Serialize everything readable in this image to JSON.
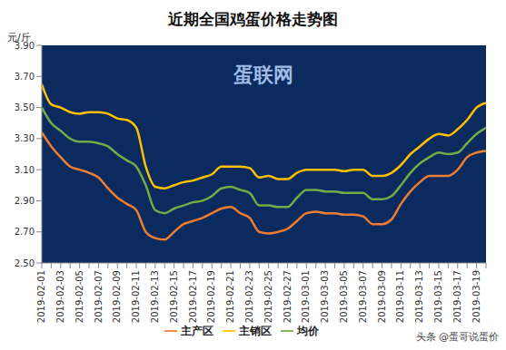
{
  "chart_data": {
    "type": "line",
    "title": "近期全国鸡蛋价格走势图",
    "y_label": "元/斤",
    "annotations": [
      "蛋联网",
      "头条 @蛋哥说蛋价"
    ],
    "categories": [
      "2019-02-01",
      null,
      "2019-02-03",
      null,
      "2019-02-05",
      null,
      "2019-02-07",
      null,
      "2019-02-09",
      null,
      "2019-02-11",
      null,
      "2019-02-13",
      null,
      "2019-02-15",
      null,
      "2019-02-17",
      null,
      "2019-02-19",
      null,
      "2019-02-21",
      null,
      "2019-02-23",
      null,
      "2019-02-25",
      null,
      "2019-02-27",
      null,
      "2019-03-01",
      null,
      "2019-03-03",
      null,
      "2019-03-05",
      null,
      "2019-03-07",
      null,
      "2019-03-09",
      null,
      "2019-03-11",
      null,
      "2019-03-13",
      null,
      "2019-03-15",
      null,
      "2019-03-17",
      null,
      "2019-03-19",
      null
    ],
    "series": [
      {
        "name": "主产区",
        "color": "#ed7d31",
        "values": [
          3.34,
          3.25,
          3.18,
          3.12,
          3.1,
          3.08,
          3.05,
          2.98,
          2.92,
          2.88,
          2.84,
          2.7,
          2.66,
          2.65,
          2.7,
          2.75,
          2.77,
          2.79,
          2.82,
          2.85,
          2.86,
          2.82,
          2.79,
          2.7,
          2.69,
          2.7,
          2.72,
          2.77,
          2.82,
          2.83,
          2.82,
          2.82,
          2.81,
          2.81,
          2.8,
          2.75,
          2.75,
          2.78,
          2.88,
          2.96,
          3.02,
          3.06,
          3.06,
          3.06,
          3.1,
          3.18,
          3.21,
          3.22
        ]
      },
      {
        "name": "主销区",
        "color": "#ffc000",
        "values": [
          3.65,
          3.52,
          3.5,
          3.47,
          3.46,
          3.47,
          3.47,
          3.46,
          3.43,
          3.42,
          3.37,
          3.12,
          2.99,
          2.98,
          3.0,
          3.02,
          3.03,
          3.05,
          3.07,
          3.12,
          3.12,
          3.12,
          3.11,
          3.05,
          3.06,
          3.04,
          3.04,
          3.08,
          3.1,
          3.1,
          3.1,
          3.1,
          3.09,
          3.1,
          3.1,
          3.06,
          3.06,
          3.08,
          3.13,
          3.2,
          3.25,
          3.3,
          3.33,
          3.32,
          3.36,
          3.42,
          3.5,
          3.53
        ]
      },
      {
        "name": "均价",
        "color": "#70ad47",
        "values": [
          3.5,
          3.4,
          3.35,
          3.3,
          3.28,
          3.28,
          3.27,
          3.25,
          3.2,
          3.16,
          3.12,
          3.0,
          2.84,
          2.82,
          2.85,
          2.87,
          2.89,
          2.9,
          2.93,
          2.98,
          2.99,
          2.97,
          2.95,
          2.87,
          2.87,
          2.86,
          2.86,
          2.92,
          2.97,
          2.97,
          2.96,
          2.96,
          2.95,
          2.95,
          2.95,
          2.91,
          2.91,
          2.93,
          3.0,
          3.08,
          3.14,
          3.18,
          3.21,
          3.2,
          3.21,
          3.27,
          3.33,
          3.37
        ]
      }
    ],
    "ylim": [
      2.5,
      3.9
    ],
    "yticks": [
      {
        "value": 2.5,
        "label": "2.50"
      },
      {
        "value": 2.7,
        "label": "2.70"
      },
      {
        "value": 2.9,
        "label": "2.90"
      },
      {
        "value": 3.1,
        "label": "3.10"
      },
      {
        "value": 3.3,
        "label": "3.30"
      },
      {
        "value": 3.5,
        "label": "3.50"
      },
      {
        "value": 3.7,
        "label": "3.70"
      },
      {
        "value": 3.9,
        "label": "3.90"
      }
    ],
    "grid": false,
    "legend": "bottom"
  }
}
